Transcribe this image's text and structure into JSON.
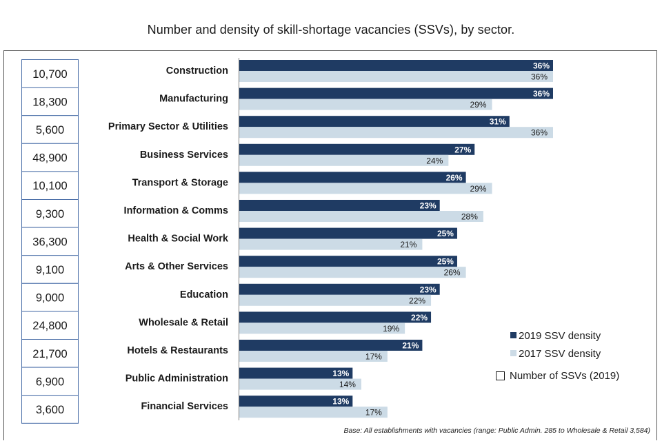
{
  "title": "Number and density of skill-shortage vacancies (SSVs), by sector.",
  "footnote": "Base: All establishments with vacancies (range: Public Admin. 285 to Wholesale & Retail 3,584)",
  "colors": {
    "density_2019": "#1f3b63",
    "density_2017": "#ccdbe6",
    "count_box_border": "#4a6ea8"
  },
  "chart_data": {
    "type": "bar",
    "orientation": "horizontal",
    "title": "Number and density of skill-shortage vacancies (SSVs), by sector.",
    "categories": [
      "Construction",
      "Manufacturing",
      "Primary Sector & Utilities",
      "Business Services",
      "Transport & Storage",
      "Information & Comms",
      "Health & Social Work",
      "Arts & Other Services",
      "Education",
      "Wholesale & Retail",
      "Hotels & Restaurants",
      "Public Administration",
      "Financial Services"
    ],
    "series": [
      {
        "name": "2019 SSV density",
        "values": [
          36,
          36,
          31,
          27,
          26,
          23,
          25,
          25,
          23,
          22,
          21,
          13,
          13
        ],
        "labels": [
          "36%",
          "36%",
          "31%",
          "27%",
          "26%",
          "23%",
          "25%",
          "25%",
          "23%",
          "22%",
          "21%",
          "13%",
          "13%"
        ]
      },
      {
        "name": "2017 SSV density",
        "values": [
          36,
          29,
          36,
          24,
          29,
          28,
          21,
          26,
          22,
          19,
          17,
          14,
          17
        ],
        "labels": [
          "36%",
          "29%",
          "36%",
          "24%",
          "29%",
          "28%",
          "21%",
          "26%",
          "22%",
          "19%",
          "17%",
          "14%",
          "17%"
        ]
      }
    ],
    "ssv_counts": {
      "name": "Number of SSVs (2019)",
      "values": [
        "10,700",
        "18,300",
        "5,600",
        "48,900",
        "10,100",
        "9,300",
        "36,300",
        "9,100",
        "9,000",
        "24,800",
        "21,700",
        "6,900",
        "3,600"
      ]
    },
    "xlim": [
      0,
      40
    ],
    "xlabel": "",
    "ylabel": "",
    "legend": "bottom-right",
    "grid": false
  }
}
